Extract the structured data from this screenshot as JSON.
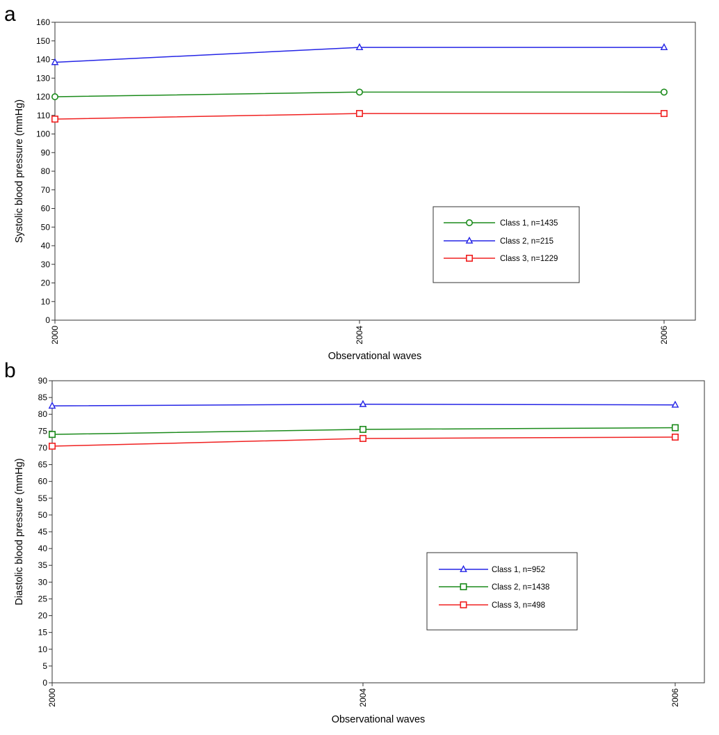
{
  "chart_data": [
    {
      "panel_label": "a",
      "type": "line",
      "xlabel": "Observational waves",
      "ylabel": "Systolic blood pressure (mmHg)",
      "x": [
        "2000",
        "2004",
        "2006"
      ],
      "x_values": [
        2000,
        2004,
        2006
      ],
      "ylim": [
        0,
        160
      ],
      "y_step": 10,
      "grid": false,
      "legend_position": "lower-right",
      "series": [
        {
          "name": "Class 1, n=1435",
          "color": "#1a8a1a",
          "marker": "circle",
          "values": [
            120,
            122.5,
            122.5
          ]
        },
        {
          "name": "Class 2, n=215",
          "color": "#2424e6",
          "marker": "triangle",
          "values": [
            138.5,
            146.5,
            146.5
          ]
        },
        {
          "name": "Class 3, n=1229",
          "color": "#f02020",
          "marker": "square",
          "values": [
            108,
            111,
            111
          ]
        }
      ]
    },
    {
      "panel_label": "b",
      "type": "line",
      "xlabel": "Observational waves",
      "ylabel": "Diastolic blood pressure (mmHg)",
      "x": [
        "2000",
        "2004",
        "2006"
      ],
      "x_values": [
        2000,
        2004,
        2006
      ],
      "ylim": [
        0,
        90
      ],
      "y_step": 5,
      "grid": false,
      "legend_position": "lower-right",
      "series": [
        {
          "name": "Class 1, n=952",
          "color": "#2424e6",
          "marker": "triangle",
          "values": [
            82.5,
            83,
            82.8
          ]
        },
        {
          "name": "Class 2, n=1438",
          "color": "#1a8a1a",
          "marker": "square",
          "values": [
            74,
            75.5,
            76
          ]
        },
        {
          "name": "Class 3, n=498",
          "color": "#f02020",
          "marker": "square",
          "values": [
            70.5,
            72.8,
            73.2
          ]
        }
      ]
    }
  ]
}
